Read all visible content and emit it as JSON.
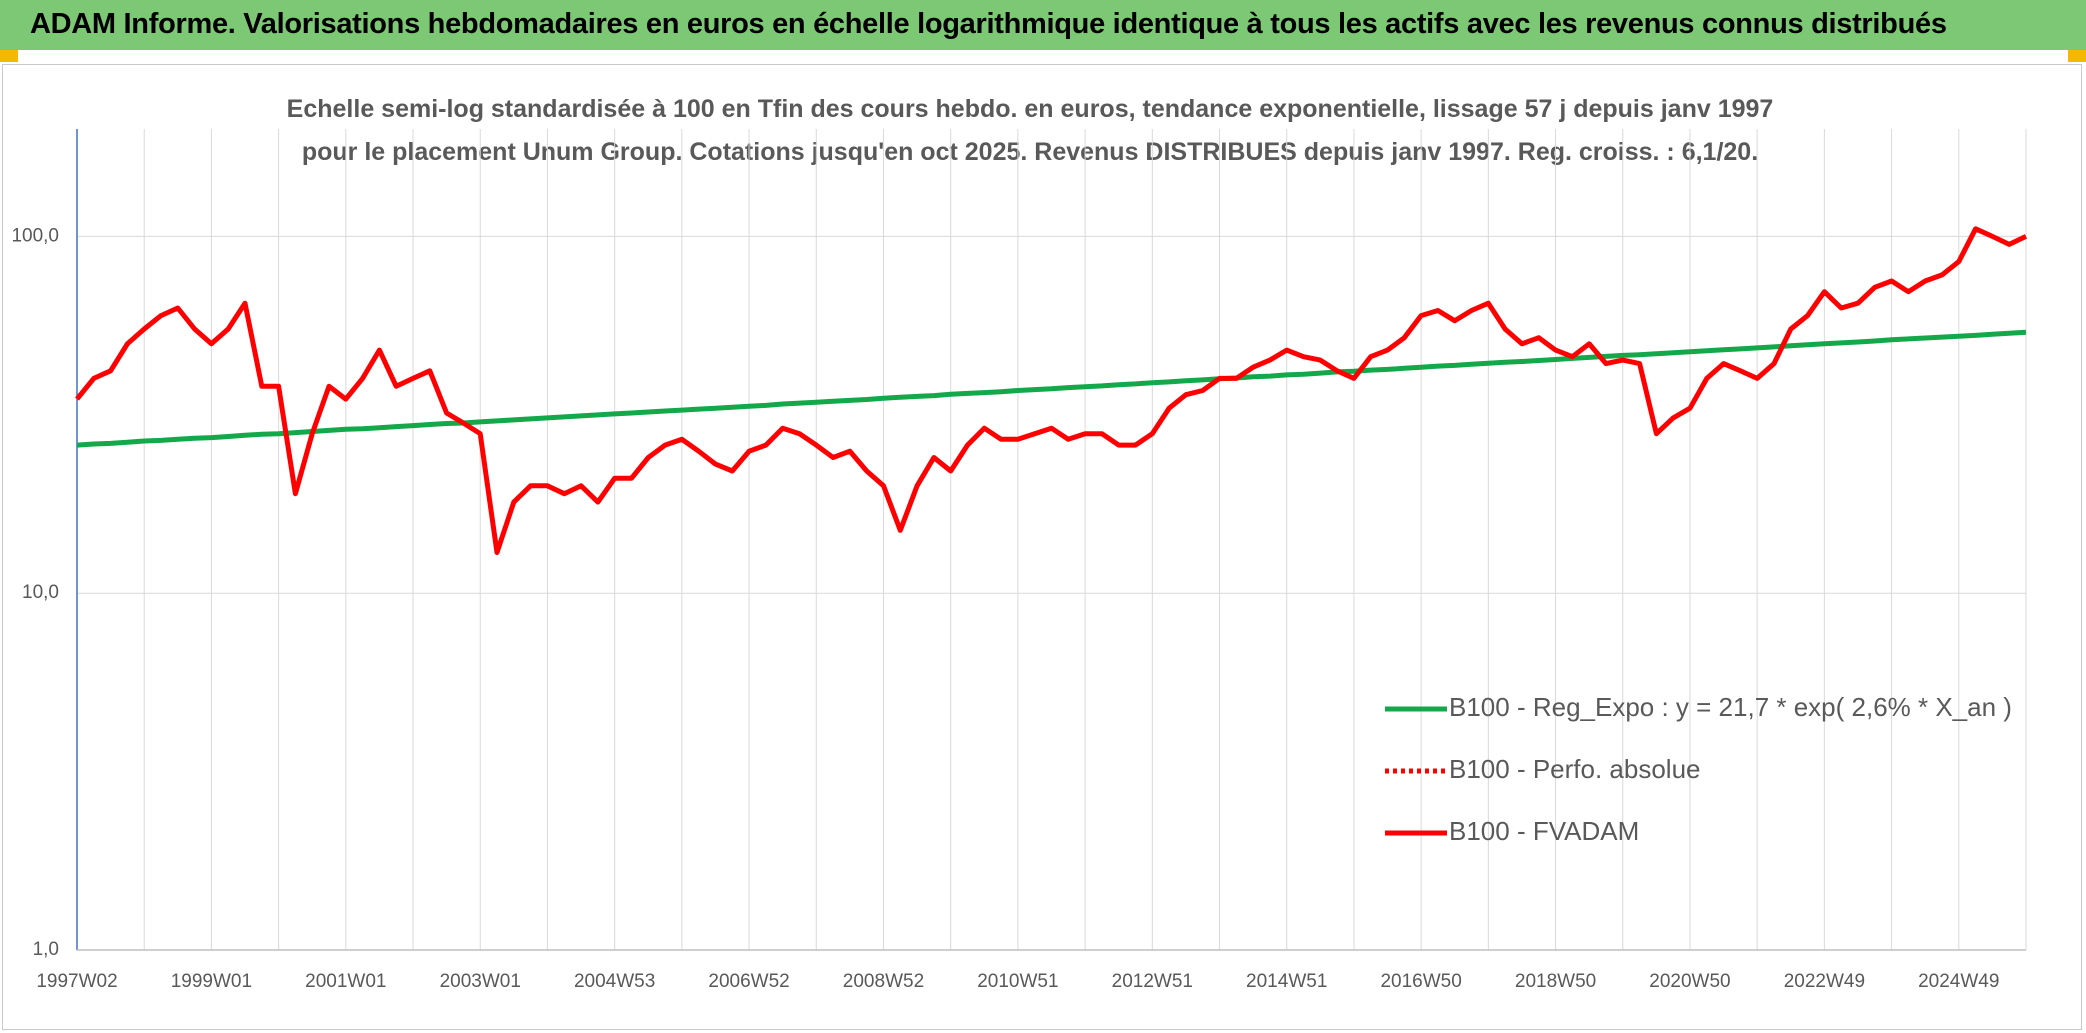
{
  "chart_data": {
    "type": "line",
    "title": "ADAM Informe. Valorisations hebdomadaires en euros en échelle logarithmique identique à tous les actifs avec les revenus connus distribués",
    "subtitle": "Echelle semi-log standardisée à 100 en Tfin des cours hebdo. en euros, tendance exponentielle, lissage 57 j depuis janv 1997 pour le placement Unum Group. Cotations jusqu'en oct 2025. Revenus DISTRIBUES depuis janv 1997. Reg. croiss. : 6,1/20.",
    "log_scale": true,
    "grid": true,
    "legend": "lower right",
    "ylim": [
      1,
      200
    ],
    "yticks": [
      {
        "value": 1,
        "label": "1,0"
      },
      {
        "value": 10,
        "label": "10,0"
      },
      {
        "value": 100,
        "label": "100,0"
      }
    ],
    "categories": [
      "1997W02",
      null,
      null,
      null,
      null,
      null,
      null,
      null,
      "1999W01",
      null,
      null,
      null,
      null,
      null,
      null,
      null,
      "2001W01",
      null,
      null,
      null,
      null,
      null,
      null,
      null,
      "2003W01",
      null,
      null,
      null,
      null,
      null,
      null,
      null,
      "2004W53",
      null,
      null,
      null,
      null,
      null,
      null,
      null,
      "2006W52",
      null,
      null,
      null,
      null,
      null,
      null,
      null,
      "2008W52",
      null,
      null,
      null,
      null,
      null,
      null,
      null,
      "2010W51",
      null,
      null,
      null,
      null,
      null,
      null,
      null,
      "2012W51",
      null,
      null,
      null,
      null,
      null,
      null,
      null,
      "2014W51",
      null,
      null,
      null,
      null,
      null,
      null,
      null,
      "2016W50",
      null,
      null,
      null,
      null,
      null,
      null,
      null,
      "2018W50",
      null,
      null,
      null,
      null,
      null,
      null,
      null,
      "2020W50",
      null,
      null,
      null,
      null,
      null,
      null,
      null,
      "2022W49",
      null,
      null,
      null,
      null,
      null,
      null,
      null,
      "2024W49",
      null,
      null,
      null,
      null
    ],
    "series": [
      {
        "name": "B100 - Reg_Expo : y = 21,7 * exp( 2,6% *  X_an )",
        "color": "#13a84a",
        "values": [
          26.0,
          26.2,
          26.3,
          26.5,
          26.7,
          26.8,
          27.0,
          27.2,
          27.3,
          27.5,
          27.7,
          27.9,
          28.0,
          28.2,
          28.4,
          28.6,
          28.8,
          28.9,
          29.1,
          29.3,
          29.5,
          29.7,
          29.9,
          30.0,
          30.2,
          30.4,
          30.6,
          30.8,
          31.0,
          31.2,
          31.4,
          31.6,
          31.8,
          32.0,
          32.2,
          32.4,
          32.6,
          32.8,
          33.0,
          33.2,
          33.4,
          33.6,
          33.9,
          34.1,
          34.3,
          34.5,
          34.7,
          34.9,
          35.2,
          35.4,
          35.6,
          35.8,
          36.1,
          36.3,
          36.5,
          36.7,
          37.0,
          37.2,
          37.4,
          37.7,
          37.9,
          38.1,
          38.4,
          38.6,
          38.9,
          39.1,
          39.4,
          39.6,
          39.9,
          40.1,
          40.4,
          40.6,
          40.9,
          41.1,
          41.4,
          41.7,
          41.9,
          42.2,
          42.4,
          42.7,
          43.0,
          43.3,
          43.5,
          43.8,
          44.1,
          44.4,
          44.6,
          44.9,
          45.2,
          45.5,
          45.8,
          46.1,
          46.4,
          46.6,
          46.9,
          47.2,
          47.5,
          47.8,
          48.1,
          48.4,
          48.7,
          49.0,
          49.4,
          49.7,
          50.0,
          50.3,
          50.6,
          50.9,
          51.3,
          51.6,
          51.9,
          52.2,
          52.5,
          52.8,
          53.2,
          53.5,
          53.9
        ]
      },
      {
        "name": "B100 - Perfo. absolue",
        "color": "#ff0000",
        "dashed": true
      },
      {
        "name": "B100 - FVADAM",
        "color": "#ff0000",
        "values": [
          35,
          40,
          42,
          50,
          55,
          60,
          63,
          55,
          50,
          55,
          65,
          38,
          38,
          19,
          28,
          38,
          35,
          40,
          48,
          38,
          40,
          42,
          32,
          30,
          28,
          13,
          18,
          20,
          20,
          19,
          20,
          18,
          21,
          21,
          24,
          26,
          27,
          25,
          23,
          22,
          25,
          26,
          29,
          28,
          26,
          24,
          25,
          22,
          20,
          15,
          20,
          24,
          22,
          26,
          29,
          27,
          27,
          28,
          29,
          27,
          28,
          28,
          26,
          26,
          28,
          33,
          36,
          37,
          40,
          40,
          43,
          45,
          48,
          46,
          45,
          42,
          40,
          46,
          48,
          52,
          60,
          62,
          58,
          62,
          65,
          55,
          50,
          52,
          48,
          46,
          50,
          44,
          45,
          44,
          28,
          31,
          33,
          40,
          44,
          42,
          40,
          44,
          55,
          60,
          70,
          63,
          65,
          72,
          75,
          70,
          75,
          78,
          85,
          105,
          100,
          95,
          100
        ]
      }
    ]
  }
}
